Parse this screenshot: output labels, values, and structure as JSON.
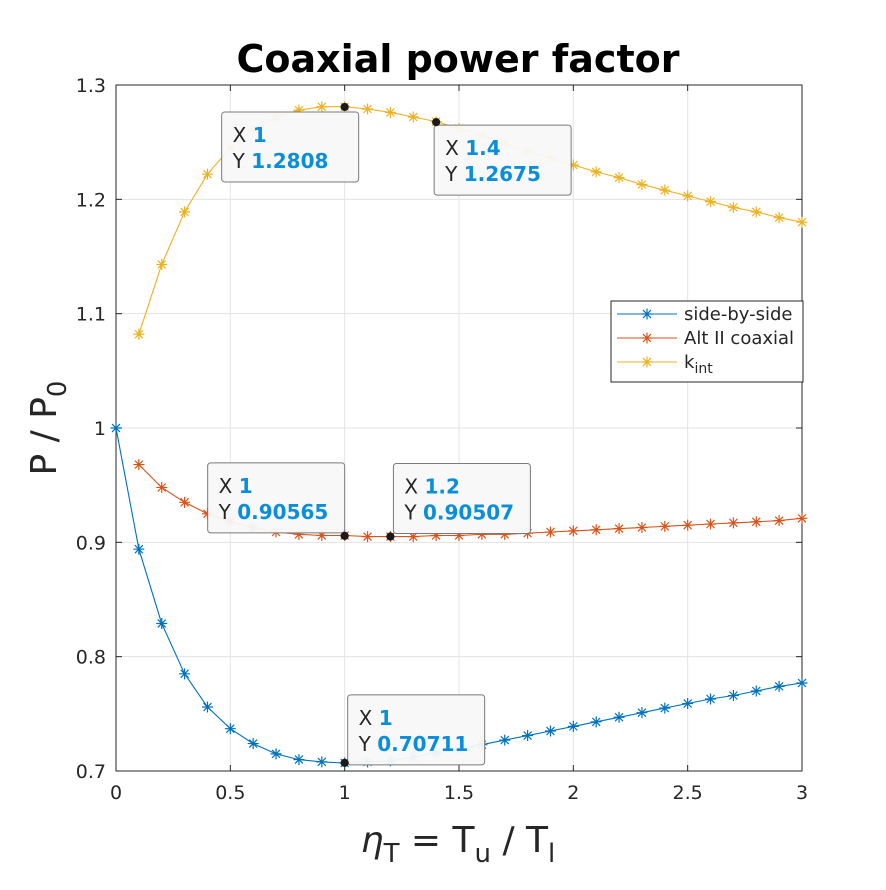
{
  "chart_data": {
    "type": "line",
    "title": "Coaxial power factor",
    "xlabel": {
      "main": "η",
      "sub": "T",
      "rest": " = T",
      "sub2": "u",
      "rest2": " / T",
      "sub3": "l"
    },
    "ylabel": {
      "main": "P / P",
      "sub": "0"
    },
    "xlim": [
      0,
      3
    ],
    "ylim": [
      0.7,
      1.3
    ],
    "xticks": [
      "0",
      "0.5",
      "1",
      "1.5",
      "2",
      "2.5",
      "3"
    ],
    "yticks": [
      "0.7",
      "0.8",
      "0.9",
      "1",
      "1.1",
      "1.2",
      "1.3"
    ],
    "grid": true,
    "legend_placement": "right",
    "x": [
      0,
      0.1,
      0.2,
      0.3,
      0.4,
      0.5,
      0.6,
      0.7,
      0.8,
      0.9,
      1.0,
      1.1,
      1.2,
      1.3,
      1.4,
      1.5,
      1.6,
      1.7,
      1.8,
      1.9,
      2.0,
      2.1,
      2.2,
      2.3,
      2.4,
      2.5,
      2.6,
      2.7,
      2.8,
      2.9,
      3.0
    ],
    "series": [
      {
        "name": "side-by-side",
        "color": "#0072BD",
        "values": [
          1.0,
          0.894,
          0.829,
          0.785,
          0.756,
          0.737,
          0.724,
          0.715,
          0.71,
          0.708,
          0.707,
          0.708,
          0.709,
          0.712,
          0.716,
          0.719,
          0.723,
          0.727,
          0.731,
          0.735,
          0.739,
          0.743,
          0.747,
          0.751,
          0.755,
          0.759,
          0.763,
          0.766,
          0.77,
          0.774,
          0.777
        ]
      },
      {
        "name": "Alt II coaxial",
        "color": "#D95319",
        "values": [
          null,
          0.968,
          0.948,
          0.935,
          0.925,
          0.918,
          0.913,
          0.909,
          0.907,
          0.906,
          0.906,
          0.905,
          0.905,
          0.905,
          0.906,
          0.906,
          0.907,
          0.907,
          0.908,
          0.909,
          0.91,
          0.911,
          0.912,
          0.913,
          0.914,
          0.915,
          0.916,
          0.917,
          0.918,
          0.919,
          0.921
        ]
      },
      {
        "name": "k",
        "name_sub": "int",
        "color": "#EDB120",
        "values": [
          null,
          1.082,
          1.143,
          1.189,
          1.222,
          1.245,
          1.261,
          1.272,
          1.278,
          1.281,
          1.281,
          1.279,
          1.276,
          1.272,
          1.268,
          1.262,
          1.256,
          1.249,
          1.242,
          1.236,
          1.23,
          1.224,
          1.219,
          1.213,
          1.208,
          1.203,
          1.198,
          1.193,
          1.189,
          1.184,
          1.18
        ]
      }
    ],
    "datatips": [
      {
        "x": 1,
        "y": 0.70711,
        "x_label": "1",
        "y_label": "0.70711"
      },
      {
        "x": 1,
        "y": 0.90565,
        "x_label": "1",
        "y_label": "0.90565"
      },
      {
        "x": 1.2,
        "y": 0.90507,
        "x_label": "1.2",
        "y_label": "0.90507"
      },
      {
        "x": 1,
        "y": 1.2808,
        "x_label": "1",
        "y_label": "1.2808"
      },
      {
        "x": 1.4,
        "y": 1.2675,
        "x_label": "1.4",
        "y_label": "1.2675"
      }
    ],
    "datatip_letters": {
      "x": "X",
      "y": "Y"
    }
  }
}
